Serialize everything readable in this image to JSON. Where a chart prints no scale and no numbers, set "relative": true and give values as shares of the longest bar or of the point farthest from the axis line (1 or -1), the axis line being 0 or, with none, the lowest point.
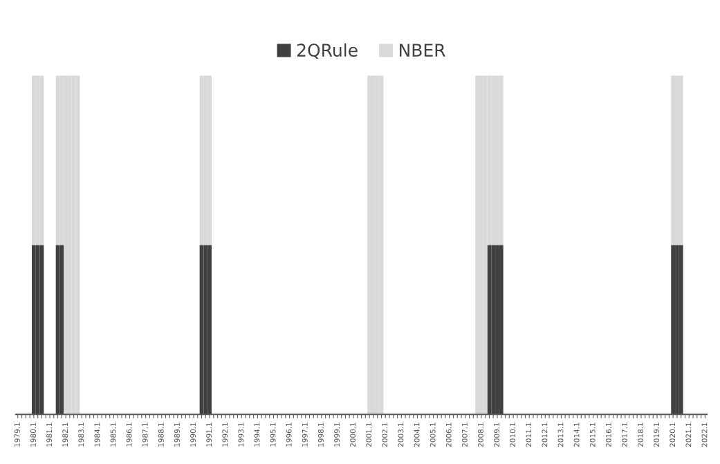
{
  "chart_data": {
    "type": "bar",
    "stacked": true,
    "relative": true,
    "legend": "top",
    "tick_labels": "x",
    "categories": [
      "1979.1",
      null,
      null,
      null,
      "1980.1",
      null,
      null,
      null,
      "1981.1",
      null,
      null,
      null,
      "1982.1",
      null,
      null,
      null,
      "1983.1",
      null,
      null,
      null,
      "1984.1",
      null,
      null,
      null,
      "1985.1",
      null,
      null,
      null,
      "1986.1",
      null,
      null,
      null,
      "1987.1",
      null,
      null,
      null,
      "1988.1",
      null,
      null,
      null,
      "1989.1",
      null,
      null,
      null,
      "1990.1",
      null,
      null,
      null,
      "1991.1",
      null,
      null,
      null,
      "1992.1",
      null,
      null,
      null,
      "1993.1",
      null,
      null,
      null,
      "1994.1",
      null,
      null,
      null,
      "1995.1",
      null,
      null,
      null,
      "1996.1",
      null,
      null,
      null,
      "1997.1",
      null,
      null,
      null,
      "1998.1",
      null,
      null,
      null,
      "1999.1",
      null,
      null,
      null,
      "2000.1",
      null,
      null,
      null,
      "2001.1",
      null,
      null,
      null,
      "2002.1",
      null,
      null,
      null,
      "2003.1",
      null,
      null,
      null,
      "2004.1",
      null,
      null,
      null,
      "2005.1",
      null,
      null,
      null,
      "2006.1",
      null,
      null,
      null,
      "2007.1",
      null,
      null,
      null,
      "2008.1",
      null,
      null,
      null,
      "2009.1",
      null,
      null,
      null,
      "2010.1",
      null,
      null,
      null,
      "2011.1",
      null,
      null,
      null,
      "2012.1",
      null,
      null,
      null,
      "2013.1",
      null,
      null,
      null,
      "2014.1",
      null,
      null,
      null,
      "2015.1",
      null,
      null,
      null,
      "2016.1",
      null,
      null,
      null,
      "2017.1",
      null,
      null,
      null,
      "2018.1",
      null,
      null,
      null,
      "2019.1",
      null,
      null,
      null,
      "2020.1",
      null,
      null,
      null,
      "2021.1",
      null,
      null,
      null,
      "2022.1"
    ],
    "series": [
      {
        "name": "2QRule",
        "color": "#404040",
        "values": [
          0,
          0,
          0,
          0,
          0.5,
          0.5,
          0.5,
          0,
          0,
          0,
          0.5,
          0.5,
          0,
          0,
          0,
          0,
          0,
          0,
          0,
          0,
          0,
          0,
          0,
          0,
          0,
          0,
          0,
          0,
          0,
          0,
          0,
          0,
          0,
          0,
          0,
          0,
          0,
          0,
          0,
          0,
          0,
          0,
          0,
          0,
          0,
          0,
          0.5,
          0.5,
          0.5,
          0,
          0,
          0,
          0,
          0,
          0,
          0,
          0,
          0,
          0,
          0,
          0,
          0,
          0,
          0,
          0,
          0,
          0,
          0,
          0,
          0,
          0,
          0,
          0,
          0,
          0,
          0,
          0,
          0,
          0,
          0,
          0,
          0,
          0,
          0,
          0,
          0,
          0,
          0,
          0,
          0,
          0,
          0,
          0,
          0,
          0,
          0,
          0,
          0,
          0,
          0,
          0,
          0,
          0,
          0,
          0,
          0,
          0,
          0,
          0,
          0,
          0,
          0,
          0,
          0,
          0,
          0,
          0,
          0,
          0.5,
          0.5,
          0.5,
          0.5,
          0,
          0,
          0,
          0,
          0,
          0,
          0,
          0,
          0,
          0,
          0,
          0,
          0,
          0,
          0,
          0,
          0,
          0,
          0,
          0,
          0,
          0,
          0,
          0,
          0,
          0,
          0,
          0,
          0,
          0,
          0,
          0,
          0,
          0,
          0,
          0,
          0,
          0,
          0,
          0,
          0,
          0,
          0.5,
          0.5,
          0.5,
          0,
          0,
          0,
          0,
          0,
          0
        ]
      },
      {
        "name": "NBER",
        "color": "#d9d9d9",
        "values": [
          0,
          0,
          0,
          0,
          0.5,
          0.5,
          0.5,
          0,
          0,
          0,
          0.5,
          0.5,
          1,
          1,
          1,
          1,
          0,
          0,
          0,
          0,
          0,
          0,
          0,
          0,
          0,
          0,
          0,
          0,
          0,
          0,
          0,
          0,
          0,
          0,
          0,
          0,
          0,
          0,
          0,
          0,
          0,
          0,
          0,
          0,
          0,
          0,
          0.5,
          0.5,
          0.5,
          0,
          0,
          0,
          0,
          0,
          0,
          0,
          0,
          0,
          0,
          0,
          0,
          0,
          0,
          0,
          0,
          0,
          0,
          0,
          0,
          0,
          0,
          0,
          0,
          0,
          0,
          0,
          0,
          0,
          0,
          0,
          0,
          0,
          0,
          0,
          0,
          0,
          0,
          0,
          1,
          1,
          1,
          1,
          0,
          0,
          0,
          0,
          0,
          0,
          0,
          0,
          0,
          0,
          0,
          0,
          0,
          0,
          0,
          0,
          0,
          0,
          0,
          0,
          0,
          0,
          0,
          1,
          1,
          1,
          0.5,
          0.5,
          0.5,
          0.5,
          0,
          0,
          0,
          0,
          0,
          0,
          0,
          0,
          0,
          0,
          0,
          0,
          0,
          0,
          0,
          0,
          0,
          0,
          0,
          0,
          0,
          0,
          0,
          0,
          0,
          0,
          0,
          0,
          0,
          0,
          0,
          0,
          0,
          0,
          0,
          0,
          0,
          0,
          0,
          0,
          0,
          0,
          0.5,
          0.5,
          0.5,
          0,
          0,
          0,
          0,
          0,
          0
        ]
      }
    ]
  }
}
